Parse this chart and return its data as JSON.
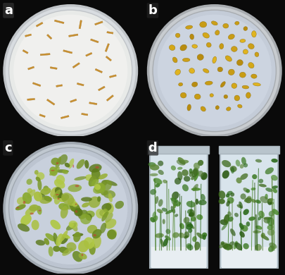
{
  "background_color": "#0a0a0a",
  "panel_labels": [
    "a",
    "b",
    "c",
    "d"
  ],
  "label_color": "white",
  "label_fontsize": 13,
  "label_fontweight": "bold",
  "figure_width": 4.05,
  "figure_height": 3.9,
  "dpi": 100,
  "panel_a": {
    "bg_color": "#b0b4b8",
    "dish_outer_color": "#d8dce0",
    "dish_rim_color": "#c0c4c8",
    "dish_inner_color": "#e8eae8",
    "agar_color": "#f0f0ee",
    "hypocotyl_color": "#c89030",
    "hypocotyl_dark": "#a07020"
  },
  "panel_b": {
    "bg_color": "#0a0a0a",
    "dish_outer_color": "#c8ccd0",
    "dish_rim_color": "#a8acb0",
    "dish_inner_color": "#c4ccd8",
    "agar_color": "#ccd4e0",
    "callus_color": "#d4a818",
    "callus_dark": "#b88810"
  },
  "panel_c": {
    "bg_color": "#0a0a0a",
    "dish_outer_color": "#c0c8d0",
    "dish_rim_color": "#a0a8b0",
    "dish_inner_color": "#bcc4d0",
    "agar_color": "#c8d0dc",
    "plant_colors": [
      "#8aaa30",
      "#6a8a20",
      "#aac040",
      "#7a9828",
      "#b0c845",
      "#5a7818",
      "#98b038"
    ],
    "stem_color": "#8a3020",
    "red_color": "#c04030"
  },
  "panel_d": {
    "bg_color": "#0a0a0a",
    "box_outer": "#c8d4dc",
    "box_inner": "#d8e4ec",
    "box_rim": "#a8b4bc",
    "cap_color": "#b8c4cc",
    "agar_color": "#e8eef2",
    "plant_colors": [
      "#2a6818",
      "#3a7820",
      "#4a8828",
      "#2a5810",
      "#507830",
      "#3a6818",
      "#608838"
    ]
  }
}
